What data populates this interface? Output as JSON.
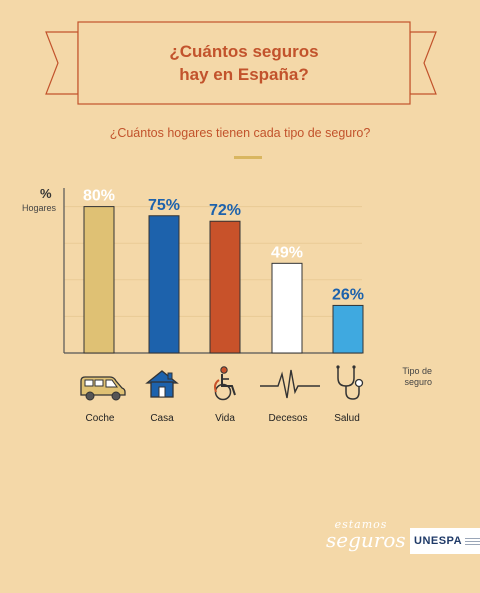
{
  "header": {
    "title_line1": "¿Cuántos seguros",
    "title_line2": "hay en España?"
  },
  "chart_data": {
    "type": "bar",
    "title": "¿Cuántos seguros hay en España?",
    "subtitle": "¿Cuántos hogares tienen cada tipo de seguro?",
    "ylabel_unit": "%",
    "ylabel": "Hogares",
    "xlabel": "Tipo de seguro",
    "ylim": [
      0,
      100
    ],
    "grid": true,
    "categories": [
      "Coche",
      "Casa",
      "Vida",
      "Decesos",
      "Salud"
    ],
    "values": [
      80,
      75,
      72,
      49,
      26
    ],
    "value_labels": [
      "80%",
      "75%",
      "72%",
      "49%",
      "26%"
    ],
    "bar_colors": [
      "#dfc174",
      "#1d62ac",
      "#c8522a",
      "#ffffff",
      "#3fa9e0"
    ],
    "label_colors": [
      "#ffffff",
      "#1d62ac",
      "#1d62ac",
      "#ffffff",
      "#1d62ac"
    ],
    "icons": [
      "van-icon",
      "house-icon",
      "wheelchair-icon",
      "heartbeat-icon",
      "stethoscope-icon"
    ]
  },
  "brand": {
    "script_line1": "estamos",
    "script_line2": "seguros",
    "logo": "UNESPA"
  },
  "colors": {
    "background": "#f4d8a8",
    "accent": "#c2532c",
    "axis": "#555555",
    "grid": "#e9cb95"
  }
}
